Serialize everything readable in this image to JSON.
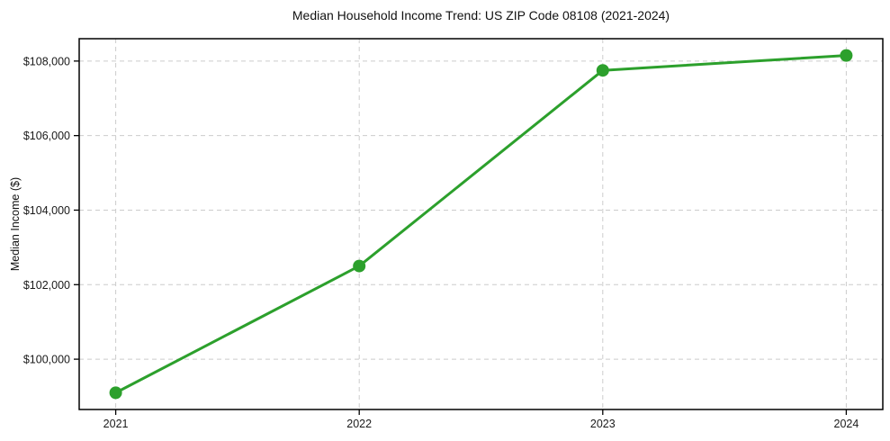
{
  "chart_data": {
    "type": "line",
    "title": "Median Household Income Trend: US ZIP Code 08108 (2021-2024)",
    "xlabel": "",
    "ylabel": "Median Income ($)",
    "categories": [
      "2021",
      "2022",
      "2023",
      "2024"
    ],
    "x": [
      2021,
      2022,
      2023,
      2024
    ],
    "series": [
      {
        "name": "Median Household Income",
        "values": [
          99100,
          102500,
          107750,
          108150
        ]
      }
    ],
    "xlim": [
      2020.85,
      2024.15
    ],
    "ylim": [
      98650,
      108600
    ],
    "y_ticks": [
      100000,
      102000,
      104000,
      106000,
      108000
    ],
    "y_tick_labels": [
      "$100,000",
      "$102,000",
      "$104,000",
      "$106,000",
      "$108,000"
    ],
    "grid": "dashed-both-axes",
    "legend_position": "none",
    "marker": "circle",
    "colors": {
      "line": "#2ca02c",
      "marker": "#2ca02c",
      "grid": "#cccccc",
      "spine": "#000000",
      "tick": "#000000",
      "text": "#1a1a1a",
      "background": "#ffffff"
    }
  }
}
